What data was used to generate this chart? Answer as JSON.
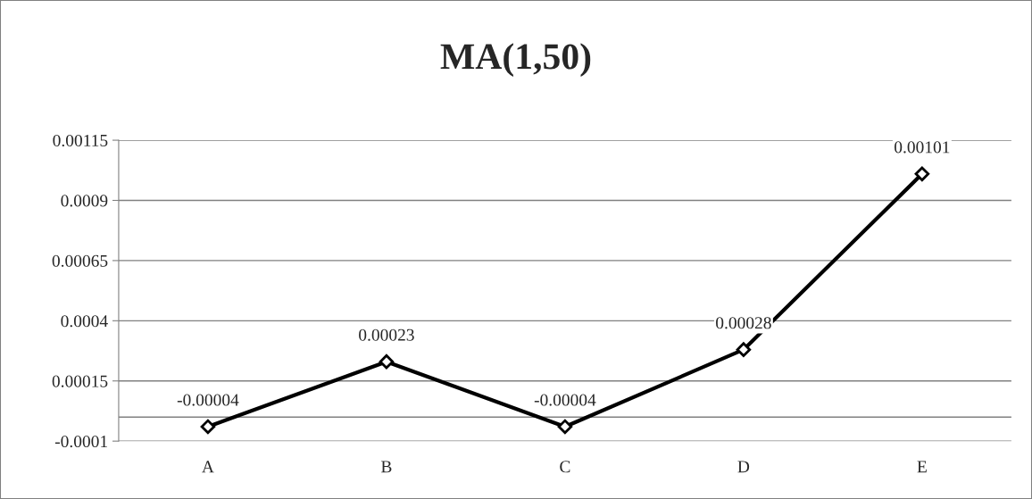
{
  "chart_data": {
    "type": "line",
    "title": "MA(1,50)",
    "categories": [
      "A",
      "B",
      "C",
      "D",
      "E"
    ],
    "series": [
      {
        "color": "#000000",
        "values": [
          -4e-05,
          0.00023,
          -4e-05,
          0.00028,
          0.00101
        ],
        "value_labels": [
          "-0.00004",
          "0.00023",
          "-0.00004",
          "0.00028",
          "0.00101"
        ]
      }
    ],
    "ylim": [
      -0.0001,
      0.00115
    ],
    "yticks": [
      -0.0001,
      0.00015,
      0.0004,
      0.00065,
      0.0009,
      0.00115
    ],
    "ref_lines": [
      {
        "axis": "y",
        "value": 0,
        "color": "#808080"
      }
    ],
    "grid": "y",
    "marker": "diamond",
    "line_style": "solid",
    "legend": false
  }
}
